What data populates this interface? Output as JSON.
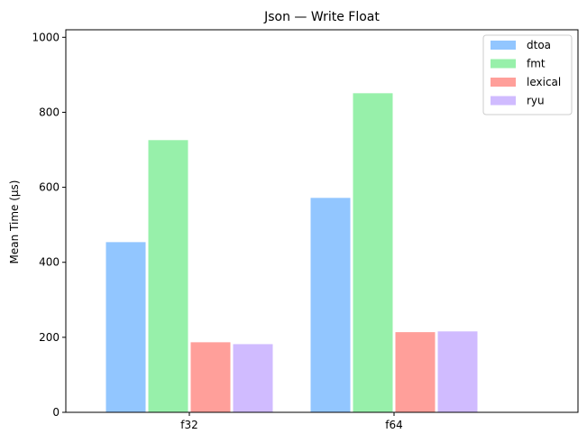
{
  "chart_data": {
    "type": "bar",
    "title": "Json — Write Float",
    "xlabel": "",
    "ylabel": "Mean Time (µs)",
    "categories": [
      "f32",
      "f64"
    ],
    "series": [
      {
        "name": "dtoa",
        "values": [
          455,
          573
        ],
        "color": "#92c6ff"
      },
      {
        "name": "fmt",
        "values": [
          727,
          852
        ],
        "color": "#97f0aa"
      },
      {
        "name": "lexical",
        "values": [
          188,
          215
        ],
        "color": "#ff9f9a"
      },
      {
        "name": "ryu",
        "values": [
          183,
          217
        ],
        "color": "#d0bbff"
      }
    ],
    "ylim": [
      0,
      1020
    ],
    "yticks": [
      0,
      200,
      400,
      600,
      800,
      1000
    ],
    "grid": false,
    "legend_position": "top-right"
  }
}
